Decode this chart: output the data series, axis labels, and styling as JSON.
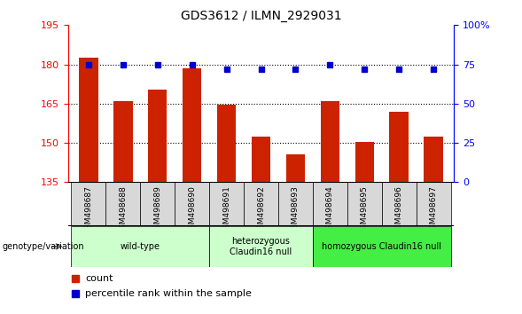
{
  "title": "GDS3612 / ILMN_2929031",
  "samples": [
    "GSM498687",
    "GSM498688",
    "GSM498689",
    "GSM498690",
    "GSM498691",
    "GSM498692",
    "GSM498693",
    "GSM498694",
    "GSM498695",
    "GSM498696",
    "GSM498697"
  ],
  "bar_values": [
    182.5,
    166.0,
    170.5,
    178.5,
    164.5,
    152.5,
    145.5,
    166.0,
    150.5,
    162.0,
    152.5
  ],
  "percentile_values": [
    75,
    75,
    75,
    75,
    72,
    72,
    72,
    75,
    72,
    72,
    72
  ],
  "bar_color": "#cc2200",
  "dot_color": "#0000cc",
  "ymin": 135,
  "ymax": 195,
  "yticks": [
    135,
    150,
    165,
    180,
    195
  ],
  "grid_lines": [
    150,
    165,
    180
  ],
  "right_yticks": [
    0,
    25,
    50,
    75,
    100
  ],
  "right_ytick_labels": [
    "0",
    "25",
    "50",
    "75",
    "100%"
  ],
  "groups": [
    {
      "label": "wild-type",
      "start": 0,
      "end": 3,
      "color": "#ccffcc"
    },
    {
      "label": "heterozygous\nClaudin16 null",
      "start": 4,
      "end": 6,
      "color": "#ccffcc"
    },
    {
      "label": "homozygous Claudin16 null",
      "start": 7,
      "end": 10,
      "color": "#44ee44"
    }
  ],
  "sample_box_color": "#d8d8d8",
  "legend_count_label": "count",
  "legend_percentile_label": "percentile rank within the sample",
  "genotype_label": "genotype/variation"
}
